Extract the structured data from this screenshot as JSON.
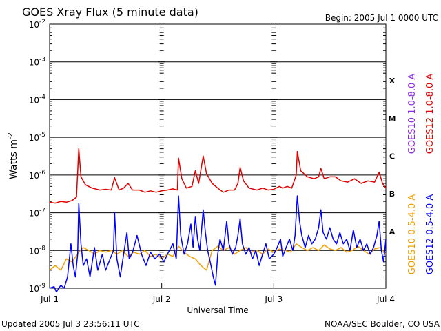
{
  "chart_data": {
    "type": "line",
    "title": "GOES Xray Flux (5 minute data)",
    "begin_label": "Begin:  2005 Jul 1 0000 UTC",
    "xlabel": "Universal Time",
    "ylabel": "Watts m",
    "ylabel_exponent": "-2",
    "y_scale": "log",
    "ylim": [
      1e-09,
      0.01
    ],
    "xlim_days": [
      0,
      3
    ],
    "x_ticks": [
      "Jul 1",
      "Jul 2",
      "Jul 3",
      "Jul 4"
    ],
    "y_ticks": [
      {
        "base": "10",
        "exp": "-2"
      },
      {
        "base": "10",
        "exp": "-3"
      },
      {
        "base": "10",
        "exp": "-4"
      },
      {
        "base": "10",
        "exp": "-5"
      },
      {
        "base": "10",
        "exp": "-6"
      },
      {
        "base": "10",
        "exp": "-7"
      },
      {
        "base": "10",
        "exp": "-8"
      },
      {
        "base": "10",
        "exp": "-9"
      }
    ],
    "flare_classes": [
      {
        "label": "X",
        "flux": 0.0001
      },
      {
        "label": "M",
        "flux": 1e-05
      },
      {
        "label": "C",
        "flux": 1e-06
      },
      {
        "label": "B",
        "flux": 1e-07
      },
      {
        "label": "A",
        "flux": 1e-08
      }
    ],
    "legend": [
      {
        "name": "GOES10 1.0-8.0 A",
        "color": "#8a2be2"
      },
      {
        "name": "GOES12 1.0-8.0 A",
        "color": "#e00000"
      },
      {
        "name": "GOES10 0.5-4.0 A",
        "color": "#f0a000"
      },
      {
        "name": "GOES12 0.5-4.0 A",
        "color": "#0000ff"
      }
    ],
    "grid": true,
    "series": [
      {
        "name": "GOES12 1.0-8.0 A",
        "color": "#e00000",
        "points": [
          [
            0.0,
            1.9e-07
          ],
          [
            0.05,
            1.8e-07
          ],
          [
            0.1,
            2e-07
          ],
          [
            0.15,
            1.9e-07
          ],
          [
            0.2,
            2.1e-07
          ],
          [
            0.24,
            2.6e-07
          ],
          [
            0.26,
            5e-06
          ],
          [
            0.28,
            9e-07
          ],
          [
            0.32,
            5.5e-07
          ],
          [
            0.38,
            4.5e-07
          ],
          [
            0.45,
            4e-07
          ],
          [
            0.5,
            4.2e-07
          ],
          [
            0.55,
            4e-07
          ],
          [
            0.58,
            8.5e-07
          ],
          [
            0.62,
            4e-07
          ],
          [
            0.66,
            4.5e-07
          ],
          [
            0.7,
            6e-07
          ],
          [
            0.74,
            4e-07
          ],
          [
            0.8,
            4e-07
          ],
          [
            0.85,
            3.5e-07
          ],
          [
            0.9,
            3.8e-07
          ],
          [
            0.95,
            3.5e-07
          ],
          [
            1.0,
            3.8e-07
          ],
          [
            1.05,
            4e-07
          ],
          [
            1.1,
            4.3e-07
          ],
          [
            1.14,
            4e-07
          ],
          [
            1.15,
            2.8e-06
          ],
          [
            1.18,
            8e-07
          ],
          [
            1.22,
            4.5e-07
          ],
          [
            1.27,
            5e-07
          ],
          [
            1.3,
            1.3e-06
          ],
          [
            1.33,
            6e-07
          ],
          [
            1.37,
            3.2e-06
          ],
          [
            1.4,
            1.1e-06
          ],
          [
            1.45,
            6e-07
          ],
          [
            1.5,
            4.5e-07
          ],
          [
            1.55,
            3.5e-07
          ],
          [
            1.6,
            4e-07
          ],
          [
            1.65,
            4e-07
          ],
          [
            1.68,
            6e-07
          ],
          [
            1.7,
            1.6e-06
          ],
          [
            1.73,
            7e-07
          ],
          [
            1.78,
            4.5e-07
          ],
          [
            1.85,
            4e-07
          ],
          [
            1.9,
            4.5e-07
          ],
          [
            1.95,
            4e-07
          ],
          [
            2.0,
            4.2e-07
          ],
          [
            2.05,
            5e-07
          ],
          [
            2.08,
            4.5e-07
          ],
          [
            2.12,
            5e-07
          ],
          [
            2.16,
            4.5e-07
          ],
          [
            2.2,
            1e-06
          ],
          [
            2.21,
            4.2e-06
          ],
          [
            2.24,
            1.3e-06
          ],
          [
            2.3,
            9e-07
          ],
          [
            2.36,
            8e-07
          ],
          [
            2.4,
            9e-07
          ],
          [
            2.42,
            1.5e-06
          ],
          [
            2.45,
            8e-07
          ],
          [
            2.5,
            9e-07
          ],
          [
            2.55,
            9e-07
          ],
          [
            2.6,
            7e-07
          ],
          [
            2.66,
            6.5e-07
          ],
          [
            2.72,
            8e-07
          ],
          [
            2.78,
            6e-07
          ],
          [
            2.84,
            7e-07
          ],
          [
            2.9,
            6.5e-07
          ],
          [
            2.94,
            1.2e-06
          ],
          [
            2.97,
            6e-07
          ],
          [
            3.0,
            4.5e-07
          ]
        ]
      },
      {
        "name": "GOES10 0.5-4.0 A",
        "color": "#f0a000",
        "points": [
          [
            0.0,
            3e-09
          ],
          [
            0.05,
            4e-09
          ],
          [
            0.1,
            3e-09
          ],
          [
            0.15,
            6e-09
          ],
          [
            0.2,
            5e-09
          ],
          [
            0.26,
            9e-09
          ],
          [
            0.3,
            1.2e-08
          ],
          [
            0.35,
            1e-08
          ],
          [
            0.4,
            8e-09
          ],
          [
            0.45,
            1e-08
          ],
          [
            0.5,
            9e-09
          ],
          [
            0.55,
            1e-08
          ],
          [
            0.6,
            8e-09
          ],
          [
            0.65,
            1e-08
          ],
          [
            0.7,
            7e-09
          ],
          [
            0.75,
            9e-09
          ],
          [
            0.8,
            8e-09
          ],
          [
            0.85,
            1e-08
          ],
          [
            0.9,
            7e-09
          ],
          [
            0.95,
            8e-09
          ],
          [
            1.0,
            6e-09
          ],
          [
            1.05,
            8e-09
          ],
          [
            1.1,
            7e-09
          ],
          [
            1.15,
            1.3e-08
          ],
          [
            1.2,
            9e-09
          ],
          [
            1.25,
            7e-09
          ],
          [
            1.3,
            6e-09
          ],
          [
            1.35,
            4e-09
          ],
          [
            1.4,
            3e-09
          ],
          [
            1.45,
            1e-08
          ],
          [
            1.5,
            1.3e-08
          ],
          [
            1.55,
            1e-08
          ],
          [
            1.6,
            1.2e-08
          ],
          [
            1.65,
            8e-09
          ],
          [
            1.7,
            1e-08
          ],
          [
            1.75,
            1.2e-08
          ],
          [
            1.8,
            9e-09
          ],
          [
            1.85,
            1e-08
          ],
          [
            1.9,
            8e-09
          ],
          [
            1.95,
            1.1e-08
          ],
          [
            2.0,
            9e-09
          ],
          [
            2.05,
            1.1e-08
          ],
          [
            2.1,
            1e-08
          ],
          [
            2.15,
            9e-09
          ],
          [
            2.2,
            1.5e-08
          ],
          [
            2.25,
            1.2e-08
          ],
          [
            2.3,
            1e-08
          ],
          [
            2.35,
            1.2e-08
          ],
          [
            2.4,
            1e-08
          ],
          [
            2.45,
            1.4e-08
          ],
          [
            2.5,
            1.1e-08
          ],
          [
            2.55,
            1e-08
          ],
          [
            2.6,
            1.2e-08
          ],
          [
            2.65,
            9e-09
          ],
          [
            2.7,
            1e-08
          ],
          [
            2.75,
            1.3e-08
          ],
          [
            2.8,
            1e-08
          ],
          [
            2.85,
            8e-09
          ],
          [
            2.9,
            1.1e-08
          ],
          [
            2.95,
            1.2e-08
          ],
          [
            3.0,
            8e-09
          ]
        ]
      },
      {
        "name": "GOES12 0.5-4.0 A",
        "color": "#0000ff",
        "points": [
          [
            0.0,
            1e-09
          ],
          [
            0.04,
            1.1e-09
          ],
          [
            0.06,
            8e-10
          ],
          [
            0.1,
            1.2e-09
          ],
          [
            0.13,
            1e-09
          ],
          [
            0.16,
            2e-09
          ],
          [
            0.19,
            1.5e-08
          ],
          [
            0.21,
            4e-09
          ],
          [
            0.23,
            2e-09
          ],
          [
            0.25,
            8e-09
          ],
          [
            0.26,
            1.8e-07
          ],
          [
            0.28,
            1.5e-08
          ],
          [
            0.3,
            4e-09
          ],
          [
            0.33,
            6e-09
          ],
          [
            0.36,
            2e-09
          ],
          [
            0.4,
            1.2e-08
          ],
          [
            0.43,
            3e-09
          ],
          [
            0.47,
            8e-09
          ],
          [
            0.5,
            3e-09
          ],
          [
            0.54,
            6e-09
          ],
          [
            0.57,
            1e-08
          ],
          [
            0.58,
            1e-07
          ],
          [
            0.6,
            6e-09
          ],
          [
            0.63,
            2e-09
          ],
          [
            0.66,
            8e-09
          ],
          [
            0.69,
            3e-08
          ],
          [
            0.71,
            6e-09
          ],
          [
            0.74,
            9e-09
          ],
          [
            0.78,
            2.5e-08
          ],
          [
            0.82,
            8e-09
          ],
          [
            0.86,
            4e-09
          ],
          [
            0.9,
            9e-09
          ],
          [
            0.94,
            6e-09
          ],
          [
            0.98,
            8e-09
          ],
          [
            1.02,
            5e-09
          ],
          [
            1.06,
            9e-09
          ],
          [
            1.1,
            1.5e-08
          ],
          [
            1.13,
            6e-09
          ],
          [
            1.15,
            2.8e-07
          ],
          [
            1.17,
            2.5e-08
          ],
          [
            1.2,
            8e-09
          ],
          [
            1.23,
            1.5e-08
          ],
          [
            1.26,
            5e-08
          ],
          [
            1.28,
            1.2e-08
          ],
          [
            1.3,
            8e-08
          ],
          [
            1.32,
            2e-08
          ],
          [
            1.34,
            1e-08
          ],
          [
            1.37,
            1.2e-07
          ],
          [
            1.39,
            3e-08
          ],
          [
            1.41,
            1e-08
          ],
          [
            1.44,
            4e-09
          ],
          [
            1.46,
            2e-09
          ],
          [
            1.48,
            1.2e-09
          ],
          [
            1.5,
            8e-09
          ],
          [
            1.52,
            2e-08
          ],
          [
            1.55,
            1e-08
          ],
          [
            1.58,
            6e-08
          ],
          [
            1.6,
            1.5e-08
          ],
          [
            1.63,
            8e-09
          ],
          [
            1.66,
            1.2e-08
          ],
          [
            1.68,
            2.5e-08
          ],
          [
            1.7,
            7e-08
          ],
          [
            1.72,
            1.5e-08
          ],
          [
            1.75,
            8e-09
          ],
          [
            1.78,
            1.2e-08
          ],
          [
            1.81,
            6e-09
          ],
          [
            1.84,
            1e-08
          ],
          [
            1.87,
            4e-09
          ],
          [
            1.9,
            8e-09
          ],
          [
            1.93,
            1.5e-08
          ],
          [
            1.96,
            6e-09
          ],
          [
            2.0,
            8e-09
          ],
          [
            2.03,
            1.2e-08
          ],
          [
            2.06,
            2e-08
          ],
          [
            2.08,
            7e-09
          ],
          [
            2.11,
            1.2e-08
          ],
          [
            2.14,
            2e-08
          ],
          [
            2.17,
            1e-08
          ],
          [
            2.19,
            2.5e-08
          ],
          [
            2.21,
            2.8e-07
          ],
          [
            2.23,
            6e-08
          ],
          [
            2.25,
            2.5e-08
          ],
          [
            2.28,
            1.2e-08
          ],
          [
            2.31,
            2.5e-08
          ],
          [
            2.34,
            1.5e-08
          ],
          [
            2.37,
            2e-08
          ],
          [
            2.4,
            4e-08
          ],
          [
            2.42,
            1.2e-07
          ],
          [
            2.44,
            3e-08
          ],
          [
            2.47,
            2e-08
          ],
          [
            2.5,
            4e-08
          ],
          [
            2.53,
            2e-08
          ],
          [
            2.56,
            1.5e-08
          ],
          [
            2.59,
            3e-08
          ],
          [
            2.62,
            1.5e-08
          ],
          [
            2.65,
            2e-08
          ],
          [
            2.68,
            1e-08
          ],
          [
            2.71,
            3.5e-08
          ],
          [
            2.74,
            1.2e-08
          ],
          [
            2.77,
            2e-08
          ],
          [
            2.8,
            1e-08
          ],
          [
            2.83,
            1.5e-08
          ],
          [
            2.86,
            8e-09
          ],
          [
            2.89,
            1.2e-08
          ],
          [
            2.92,
            2.5e-08
          ],
          [
            2.94,
            6e-08
          ],
          [
            2.96,
            1e-08
          ],
          [
            2.98,
            5e-09
          ],
          [
            3.0,
            2e-08
          ]
        ]
      }
    ]
  },
  "footer": {
    "updated": "Updated 2005 Jul  3 23:56:11 UTC",
    "credit": "NOAA/SEC Boulder, CO USA"
  }
}
